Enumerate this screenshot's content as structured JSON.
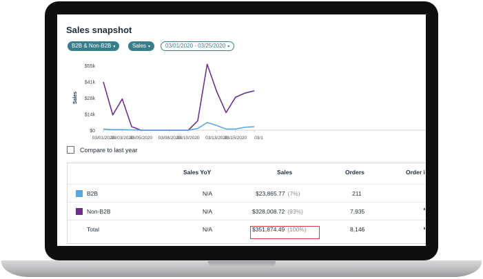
{
  "page": {
    "title": "Sales snapshot",
    "filters": [
      {
        "label": "B2B & Non-B2B",
        "style": "filled"
      },
      {
        "label": "Sales",
        "style": "filled"
      },
      {
        "label": "03/01/2020 - 03/25/2020",
        "style": "outline"
      }
    ],
    "caret": "▾",
    "compare_label": "Compare to last year"
  },
  "colors": {
    "accent": "#397e8c",
    "b2b": "#5aa7e0",
    "nonb2b": "#6b2f8f",
    "highlight": "#d13b3b"
  },
  "chart_data": {
    "type": "line",
    "ylabel": "Sales",
    "y_ticks": [
      "$55k",
      "$41k",
      "$28k",
      "$14k",
      "$0"
    ],
    "ylim": [
      0,
      55000
    ],
    "x_tick_labels": [
      "03/01/2020",
      "03/03/2020",
      "03/05/2020",
      "03/08/2020",
      "03/10/2020",
      "03/13/2020",
      "03/15/2020",
      "03/1"
    ],
    "x": [
      "03/01",
      "03/02",
      "03/03",
      "03/04",
      "03/05",
      "03/06",
      "03/07",
      "03/08",
      "03/09",
      "03/10",
      "03/11",
      "03/12",
      "03/13",
      "03/14",
      "03/15",
      "03/16",
      "03/17"
    ],
    "series": [
      {
        "name": "Non-B2B",
        "color": "#6b2f8f",
        "values": [
          41000,
          13000,
          26500,
          3000,
          0,
          0,
          0,
          0,
          0,
          0,
          8000,
          56000,
          33000,
          15000,
          28000,
          31500,
          33500
        ]
      },
      {
        "name": "B2B",
        "color": "#5aa7e0",
        "values": [
          1000,
          500,
          500,
          300,
          0,
          0,
          0,
          0,
          0,
          0,
          1500,
          6500,
          4000,
          1000,
          1000,
          2500,
          3000
        ]
      }
    ],
    "grid": false,
    "legend": "none"
  },
  "table": {
    "headers": [
      "",
      "Sales YoY",
      "Sales",
      "Orders",
      "Order i"
    ],
    "rows": [
      {
        "swatch": "#5aa7e0",
        "label": "B2B",
        "yoy": "N/A",
        "sales": "$23,865.77",
        "pct": "(7%)",
        "orders": "211"
      },
      {
        "swatch": "#6b2f8f",
        "label": "Non-B2B",
        "yoy": "N/A",
        "sales": "$328,008.72",
        "pct": "(93%)",
        "orders": "7,935"
      },
      {
        "swatch": "",
        "label": "Total",
        "yoy": "N/A",
        "sales": "$351,874.49",
        "pct": "(100%)",
        "orders": "8,146"
      }
    ]
  }
}
